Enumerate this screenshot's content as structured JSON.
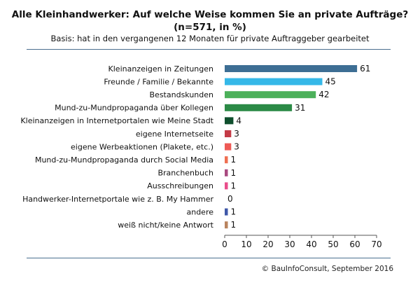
{
  "chart_data": {
    "type": "bar",
    "orientation": "horizontal",
    "title": "Alle Kleinhandwerker: Auf welche Weise kommen Sie an private Aufträge?",
    "title_line2": "(n=571, in %)",
    "subtitle": "Basis: hat in den vergangenen 12 Monaten für private Auftraggeber gearbeitet",
    "categories": [
      "Kleinanzeigen in Zeitungen",
      "Freunde / Familie / Bekannte",
      "Bestandskunden",
      "Mund-zu-Mundpropaganda über Kollegen",
      "Kleinanzeigen in Internetportalen wie Meine Stadt",
      "eigene Internetseite",
      "eigene Werbeaktionen (Plakete, etc.)",
      "Mund-zu-Mundpropaganda durch Social Media",
      "Branchenbuch",
      "Ausschreibungen",
      "Handwerker-Internetportale wie z. B. My Hammer",
      "andere",
      "weiß nicht/keine Antwort"
    ],
    "values": [
      61,
      45,
      42,
      31,
      4,
      3,
      3,
      1,
      1,
      1,
      0,
      1,
      1
    ],
    "colors": [
      "#3d6e94",
      "#35b8e8",
      "#4cb05a",
      "#2b8a46",
      "#0f4f2d",
      "#c43b47",
      "#ee5a55",
      "#ef6f52",
      "#a94a80",
      "#e94d8a",
      "#9b5aa5",
      "#3f58a8",
      "#b9835e"
    ],
    "xlim": [
      0,
      70
    ],
    "xticks": [
      0,
      10,
      20,
      30,
      40,
      50,
      60,
      70
    ],
    "grid": false,
    "legend": "none"
  },
  "source": "© BauInfoConsult, September 2016"
}
